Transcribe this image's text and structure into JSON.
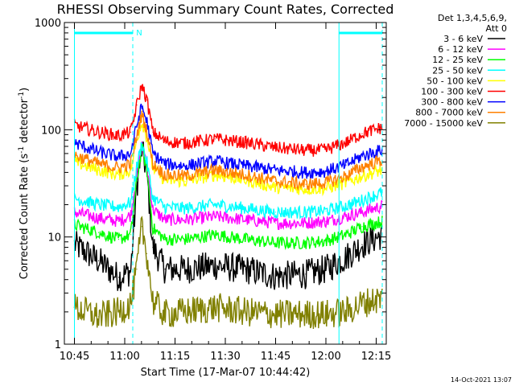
{
  "chart_data": {
    "type": "line",
    "title": "RHESSI Observing Summary Count Rates, Corrected",
    "xlabel": "Start Time (17-Mar-07 10:44:42)",
    "ylabel_main": "Corrected Count Rate (s",
    "ylabel_sup1": "-1",
    "ylabel_mid": " detector",
    "ylabel_sup2": "-1",
    "ylabel_end": ")",
    "yscale": "log",
    "ylim": [
      1,
      1000
    ],
    "xlim_min": [
      10.7,
      12.3
    ],
    "x_ticks": [
      {
        "label": "10:45",
        "t": 10.75
      },
      {
        "label": "11:00",
        "t": 11.0
      },
      {
        "label": "11:15",
        "t": 11.25
      },
      {
        "label": "11:30",
        "t": 11.5
      },
      {
        "label": "11:45",
        "t": 11.75
      },
      {
        "label": "12:00",
        "t": 12.0
      },
      {
        "label": "12:15",
        "t": 12.25
      }
    ],
    "y_ticks": [
      {
        "label": "1",
        "v": 1
      },
      {
        "label": "10",
        "v": 10
      },
      {
        "label": "100",
        "v": 100
      },
      {
        "label": "1000",
        "v": 1000
      }
    ],
    "legend_header": [
      "Det 1,3,4,5,6,9,",
      "Att 0"
    ],
    "legend_position": "right",
    "series": [
      {
        "name": "3 - 6 keV",
        "color": "#000000",
        "points": [
          [
            10.75,
            8.5
          ],
          [
            10.87,
            6.0
          ],
          [
            10.97,
            4.2
          ],
          [
            11.03,
            4.8
          ],
          [
            11.06,
            30
          ],
          [
            11.085,
            65
          ],
          [
            11.11,
            40
          ],
          [
            11.14,
            8
          ],
          [
            11.2,
            5
          ],
          [
            11.3,
            5
          ],
          [
            11.45,
            5.4
          ],
          [
            11.6,
            5
          ],
          [
            11.75,
            4.3
          ],
          [
            11.9,
            4.5
          ],
          [
            12.0,
            5.0
          ],
          [
            12.1,
            6.5
          ],
          [
            12.18,
            8.5
          ],
          [
            12.28,
            10.5
          ]
        ]
      },
      {
        "name": "6 - 12 keV",
        "color": "#ff00ff",
        "points": [
          [
            10.75,
            17
          ],
          [
            10.87,
            15
          ],
          [
            10.97,
            14
          ],
          [
            11.03,
            16
          ],
          [
            11.06,
            38
          ],
          [
            11.085,
            72
          ],
          [
            11.11,
            45
          ],
          [
            11.14,
            18
          ],
          [
            11.2,
            14.5
          ],
          [
            11.3,
            14.5
          ],
          [
            11.45,
            15.5
          ],
          [
            11.6,
            14.5
          ],
          [
            11.75,
            13.5
          ],
          [
            11.9,
            13.5
          ],
          [
            12.0,
            14
          ],
          [
            12.1,
            15.5
          ],
          [
            12.18,
            17
          ],
          [
            12.28,
            19.5
          ]
        ]
      },
      {
        "name": "12 - 25 keV",
        "color": "#00ff00",
        "points": [
          [
            10.75,
            13
          ],
          [
            10.87,
            11
          ],
          [
            10.97,
            9.5
          ],
          [
            11.03,
            10.5
          ],
          [
            11.06,
            33
          ],
          [
            11.085,
            70
          ],
          [
            11.11,
            42
          ],
          [
            11.14,
            12
          ],
          [
            11.2,
            9.5
          ],
          [
            11.3,
            9.5
          ],
          [
            11.45,
            10.5
          ],
          [
            11.6,
            9.5
          ],
          [
            11.75,
            8.8
          ],
          [
            11.9,
            8.8
          ],
          [
            12.0,
            9.2
          ],
          [
            12.1,
            10.5
          ],
          [
            12.18,
            12.5
          ],
          [
            12.28,
            14
          ]
        ]
      },
      {
        "name": "25 - 50 keV",
        "color": "#00ffff",
        "points": [
          [
            10.75,
            23
          ],
          [
            10.87,
            20
          ],
          [
            10.97,
            19
          ],
          [
            11.03,
            21
          ],
          [
            11.06,
            45
          ],
          [
            11.085,
            75
          ],
          [
            11.11,
            50
          ],
          [
            11.14,
            23
          ],
          [
            11.2,
            19
          ],
          [
            11.3,
            18.5
          ],
          [
            11.45,
            20
          ],
          [
            11.6,
            18.5
          ],
          [
            11.75,
            17
          ],
          [
            11.9,
            17
          ],
          [
            12.0,
            17.5
          ],
          [
            12.1,
            19.5
          ],
          [
            12.18,
            22
          ],
          [
            12.28,
            26
          ]
        ]
      },
      {
        "name": "50 - 100 keV",
        "color": "#ffff00",
        "points": [
          [
            10.75,
            50
          ],
          [
            10.87,
            42
          ],
          [
            10.97,
            38
          ],
          [
            11.03,
            42
          ],
          [
            11.06,
            80
          ],
          [
            11.085,
            120
          ],
          [
            11.11,
            85
          ],
          [
            11.14,
            44
          ],
          [
            11.2,
            34
          ],
          [
            11.3,
            33
          ],
          [
            11.45,
            38
          ],
          [
            11.6,
            34
          ],
          [
            11.75,
            29
          ],
          [
            11.9,
            28
          ],
          [
            12.0,
            28.5
          ],
          [
            12.1,
            32
          ],
          [
            12.18,
            37
          ],
          [
            12.28,
            42
          ]
        ]
      },
      {
        "name": "100 - 300 keV",
        "color": "#ff0000",
        "points": [
          [
            10.75,
            110
          ],
          [
            10.87,
            95
          ],
          [
            10.97,
            88
          ],
          [
            11.03,
            95
          ],
          [
            11.06,
            170
          ],
          [
            11.085,
            260
          ],
          [
            11.11,
            190
          ],
          [
            11.14,
            95
          ],
          [
            11.2,
            78
          ],
          [
            11.3,
            75
          ],
          [
            11.45,
            82
          ],
          [
            11.6,
            76
          ],
          [
            11.75,
            68
          ],
          [
            11.9,
            64
          ],
          [
            12.0,
            65
          ],
          [
            12.1,
            76
          ],
          [
            12.18,
            92
          ],
          [
            12.28,
            105
          ]
        ]
      },
      {
        "name": "300 - 800 keV",
        "color": "#0000ff",
        "points": [
          [
            10.75,
            75
          ],
          [
            10.87,
            62
          ],
          [
            10.97,
            56
          ],
          [
            11.03,
            60
          ],
          [
            11.06,
            110
          ],
          [
            11.085,
            165
          ],
          [
            11.11,
            120
          ],
          [
            11.14,
            60
          ],
          [
            11.2,
            48
          ],
          [
            11.3,
            46
          ],
          [
            11.45,
            51
          ],
          [
            11.6,
            46
          ],
          [
            11.75,
            42
          ],
          [
            11.9,
            40
          ],
          [
            12.0,
            41
          ],
          [
            12.1,
            47
          ],
          [
            12.18,
            57
          ],
          [
            12.28,
            65
          ]
        ]
      },
      {
        "name": "800 - 7000 keV",
        "color": "#ff8000",
        "points": [
          [
            10.75,
            58
          ],
          [
            10.87,
            48
          ],
          [
            10.97,
            44
          ],
          [
            11.03,
            48
          ],
          [
            11.06,
            88
          ],
          [
            11.085,
            140
          ],
          [
            11.11,
            98
          ],
          [
            11.14,
            48
          ],
          [
            11.2,
            38
          ],
          [
            11.3,
            37
          ],
          [
            11.45,
            42
          ],
          [
            11.6,
            38
          ],
          [
            11.75,
            33
          ],
          [
            11.9,
            31
          ],
          [
            12.0,
            32
          ],
          [
            12.1,
            37
          ],
          [
            12.18,
            45
          ],
          [
            12.28,
            52
          ]
        ]
      },
      {
        "name": "7000 - 15000 keV",
        "color": "#808000",
        "points": [
          [
            10.75,
            2.2
          ],
          [
            10.87,
            1.8
          ],
          [
            10.97,
            2.0
          ],
          [
            11.03,
            2.4
          ],
          [
            11.06,
            5
          ],
          [
            11.085,
            12.5
          ],
          [
            11.11,
            7
          ],
          [
            11.14,
            2.5
          ],
          [
            11.2,
            1.9
          ],
          [
            11.3,
            2.0
          ],
          [
            11.45,
            2.2
          ],
          [
            11.6,
            2.0
          ],
          [
            11.75,
            1.9
          ],
          [
            11.9,
            1.9
          ],
          [
            12.0,
            1.9
          ],
          [
            12.1,
            2.0
          ],
          [
            12.18,
            2.4
          ],
          [
            12.28,
            2.7
          ]
        ]
      }
    ],
    "attenuator_bars": [
      {
        "t0": 10.75,
        "t1": 11.04
      },
      {
        "t0": 12.065,
        "t1": 12.28
      }
    ],
    "annotation": {
      "label": "N",
      "t": 11.045
    },
    "footer_timestamp": "14-Oct-2021 13:07",
    "colors": {
      "background": "#ffffff",
      "axes": "#000000",
      "text": "#000000",
      "attenuator": "#00ffff"
    }
  }
}
